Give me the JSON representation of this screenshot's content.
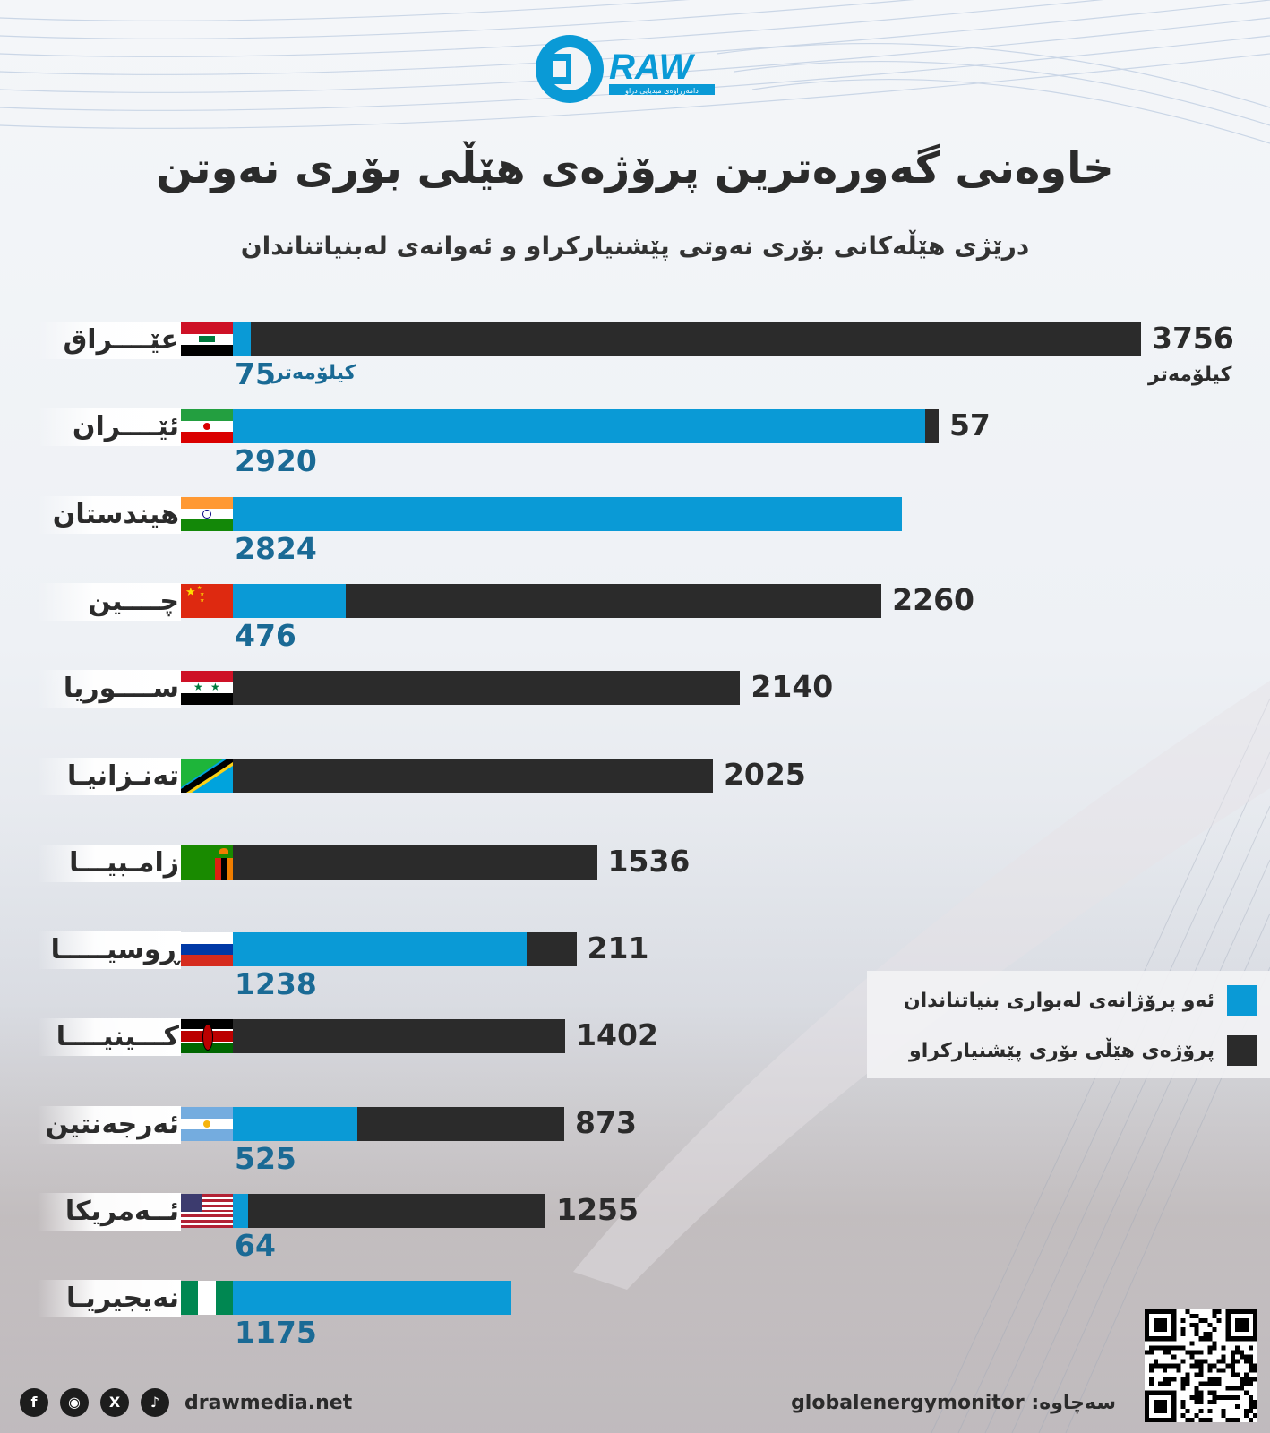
{
  "brand": {
    "logo_text": "RAW",
    "logo_tagline": "دامەزراوەی میدیایی دراو",
    "website": "drawmedia.net"
  },
  "title": "خاوەنی گەورەترین پرۆژەی هێڵی بۆری نەوتن",
  "subtitle": "درێژی هێڵەکانی بۆری نەوتی پێشنیارکراو و ئەوانەی لەبنیاتناندان",
  "legend": {
    "built": "ئەو پرۆژانەی لەبواری بنیاتناندان",
    "proposed": "پرۆژەی هێڵی بۆری پێشنیارکراو"
  },
  "source": "globalenergymonitor :سەچاوە",
  "social_icons": [
    "facebook-icon",
    "instagram-icon",
    "x-icon",
    "tiktok-icon"
  ],
  "colors": {
    "built": "#0a9ad6",
    "proposed": "#2b2b2b",
    "built_label": "#1a6a95"
  },
  "chart_data": {
    "type": "bar",
    "orientation": "horizontal",
    "stacked": true,
    "unit_label": "کیلۆمەتر",
    "categories": [
      "عێــــراق",
      "ئێــــران",
      "هیندستان",
      "چــــین",
      "ســــوریا",
      "تەنـزانیـا",
      "زامـبیـــا",
      "ڕوسیـــــا",
      "کـــینیــــا",
      "ئەرجەنتین",
      "ئــەمریکا",
      "نەیجیریـا"
    ],
    "series": [
      {
        "name": "ئەو پرۆژانەی لەبواری بنیاتناندان",
        "values": [
          75,
          2920,
          2824,
          476,
          null,
          null,
          null,
          1238,
          null,
          525,
          64,
          1175
        ]
      },
      {
        "name": "پرۆژەی هێڵی بۆری پێشنیارکراو",
        "values": [
          3756,
          57,
          null,
          2260,
          2140,
          2025,
          1536,
          211,
          1402,
          873,
          1255,
          null
        ]
      }
    ],
    "flags": [
      "iraq",
      "iran",
      "india",
      "china",
      "syria",
      "tanzania",
      "zambia",
      "russia",
      "kenya",
      "argentina",
      "usa",
      "nigeria"
    ]
  }
}
